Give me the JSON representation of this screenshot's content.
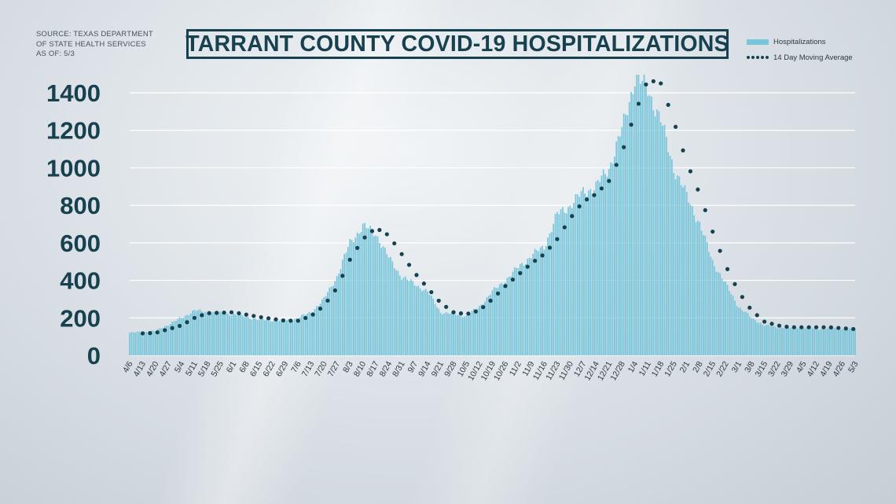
{
  "source": {
    "lines": [
      "SOURCE: TEXAS DEPARTMENT",
      "OF STATE HEALTH SERVICES",
      "AS OF: 5/3"
    ]
  },
  "chart_data": {
    "type": "bar",
    "title": "TARRANT COUNTY COVID-19 HOSPITALIZATIONS",
    "xlabel": "",
    "ylabel": "",
    "ylim": [
      0,
      1500
    ],
    "y_ticks": [
      0,
      200,
      400,
      600,
      800,
      1000,
      1200,
      1400
    ],
    "grid": true,
    "legend_position": "top-right",
    "start_date": "2020-04-06",
    "days": 393,
    "x_tick_labels": [
      "4/6",
      "4/13",
      "4/20",
      "4/27",
      "5/4",
      "5/11",
      "5/18",
      "5/25",
      "6/1",
      "6/8",
      "6/15",
      "6/22",
      "6/29",
      "7/6",
      "7/13",
      "7/20",
      "7/27",
      "8/3",
      "8/10",
      "8/17",
      "8/24",
      "8/31",
      "9/7",
      "9/14",
      "9/21",
      "9/28",
      "10/5",
      "10/12",
      "10/19",
      "10/26",
      "11/2",
      "11/9",
      "11/16",
      "11/23",
      "11/30",
      "12/7",
      "12/14",
      "12/21",
      "12/28",
      "1/4",
      "1/11",
      "1/18",
      "1/25",
      "2/1",
      "2/8",
      "2/15",
      "2/22",
      "3/1",
      "3/8",
      "3/15",
      "3/22",
      "3/29",
      "4/5",
      "4/12",
      "4/19",
      "4/26",
      "5/3"
    ],
    "series": [
      {
        "name": "Hospitalizations",
        "kind": "bar",
        "color": "#76c5da",
        "anchor_days": [
          0,
          14,
          28,
          35,
          42,
          56,
          70,
          84,
          91,
          98,
          105,
          112,
          119,
          126,
          133,
          140,
          147,
          154,
          161,
          168,
          175,
          182,
          189,
          196,
          203,
          210,
          217,
          224,
          231,
          238,
          245,
          252,
          259,
          266,
          273,
          280,
          287,
          294,
          301,
          308,
          315,
          322,
          329,
          336,
          343,
          350,
          357,
          364,
          371,
          378,
          385,
          392
        ],
        "anchor_values": [
          120,
          130,
          200,
          240,
          230,
          220,
          190,
          185,
          200,
          230,
          300,
          420,
          600,
          690,
          650,
          520,
          420,
          380,
          340,
          230,
          220,
          210,
          260,
          340,
          400,
          470,
          530,
          580,
          750,
          800,
          870,
          900,
          1000,
          1200,
          1480,
          1420,
          1250,
          1000,
          850,
          700,
          500,
          380,
          260,
          200,
          160,
          150,
          145,
          150,
          140,
          145,
          140,
          140
        ]
      },
      {
        "name": "14 Day Moving Average",
        "kind": "dotted-line",
        "color": "#16414e",
        "anchor_days": [
          0,
          14,
          28,
          35,
          42,
          56,
          70,
          84,
          91,
          98,
          105,
          112,
          119,
          126,
          133,
          140,
          147,
          154,
          161,
          168,
          175,
          182,
          189,
          196,
          203,
          210,
          217,
          224,
          231,
          238,
          245,
          252,
          259,
          266,
          273,
          280,
          287,
          294,
          301,
          308,
          315,
          322,
          329,
          336,
          343,
          350,
          357,
          364,
          371,
          378,
          385,
          392
        ],
        "anchor_values": [
          115,
          120,
          160,
          200,
          225,
          230,
          205,
          185,
          185,
          210,
          265,
          360,
          510,
          620,
          680,
          640,
          540,
          440,
          360,
          280,
          230,
          220,
          240,
          300,
          370,
          430,
          490,
          540,
          620,
          730,
          820,
          860,
          930,
          1080,
          1290,
          1470,
          1450,
          1250,
          1030,
          860,
          660,
          480,
          340,
          240,
          180,
          160,
          150,
          150,
          150,
          150,
          145,
          140
        ]
      }
    ]
  }
}
